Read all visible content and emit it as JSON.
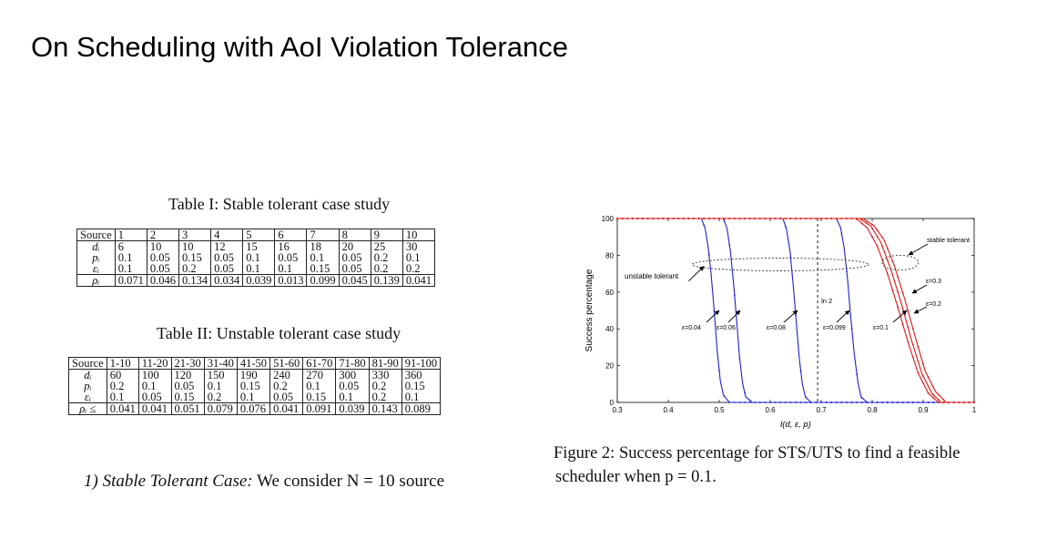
{
  "slide_title": "On Scheduling with AoI Violation Tolerance",
  "table1": {
    "caption": "Table I: Stable tolerant case study",
    "header": [
      "Source",
      "1",
      "2",
      "3",
      "4",
      "5",
      "6",
      "7",
      "8",
      "9",
      "10"
    ],
    "rows": [
      {
        "label": "d_i",
        "display": "dᵢ",
        "cells": [
          "6",
          "10",
          "10",
          "12",
          "15",
          "16",
          "18",
          "20",
          "25",
          "30"
        ]
      },
      {
        "label": "p_i",
        "display": "pᵢ",
        "cells": [
          "0.1",
          "0.05",
          "0.15",
          "0.05",
          "0.1",
          "0.05",
          "0.1",
          "0.05",
          "0.2",
          "0.1"
        ]
      },
      {
        "label": "epsilon_i",
        "display": "εᵢ",
        "cells": [
          "0.1",
          "0.05",
          "0.2",
          "0.05",
          "0.1",
          "0.1",
          "0.15",
          "0.05",
          "0.2",
          "0.2"
        ]
      },
      {
        "label": "rho_i",
        "display": "ρᵢ",
        "cells": [
          "0.071",
          "0.046",
          "0.134",
          "0.034",
          "0.039",
          "0.013",
          "0.099",
          "0.045",
          "0.139",
          "0.041"
        ]
      }
    ]
  },
  "table2": {
    "caption": "Table II: Unstable tolerant case study",
    "header": [
      "Source",
      "1-10",
      "11-20",
      "21-30",
      "31-40",
      "41-50",
      "51-60",
      "61-70",
      "71-80",
      "81-90",
      "91-100"
    ],
    "rows": [
      {
        "label": "d_i",
        "display": "dᵢ",
        "cells": [
          "60",
          "100",
          "120",
          "150",
          "190",
          "240",
          "270",
          "300",
          "330",
          "360"
        ]
      },
      {
        "label": "p_i",
        "display": "pᵢ",
        "cells": [
          "0.2",
          "0.1",
          "0.05",
          "0.1",
          "0.15",
          "0.2",
          "0.1",
          "0.05",
          "0.2",
          "0.15"
        ]
      },
      {
        "label": "epsilon_i",
        "display": "εᵢ",
        "cells": [
          "0.1",
          "0.05",
          "0.15",
          "0.2",
          "0.1",
          "0.05",
          "0.15",
          "0.1",
          "0.2",
          "0.1"
        ]
      },
      {
        "label": "rho_i_le",
        "display": "ρᵢ ≤",
        "cells": [
          "0.041",
          "0.041",
          "0.051",
          "0.079",
          "0.076",
          "0.041",
          "0.091",
          "0.039",
          "0.143",
          "0.089"
        ]
      }
    ]
  },
  "paragraph": {
    "section": "1) Stable Tolerant Case:",
    "text": "We consider N = 10 source"
  },
  "figure_caption": {
    "line1": "Figure 2:  Success percentage for STS/UTS to find a feasible",
    "line2": "scheduler when p = 0.1."
  },
  "chart_data": {
    "type": "line",
    "title": "",
    "xlabel": "l(d, ε, p)",
    "ylabel": "Success percentage",
    "xlim": [
      0.3,
      1.0
    ],
    "ylim": [
      0,
      100
    ],
    "xticks": [
      "0.3",
      "0.4",
      "0.5",
      "0.6",
      "0.7",
      "0.8",
      "0.9",
      "1"
    ],
    "yticks": [
      "0",
      "20",
      "40",
      "60",
      "80",
      "100"
    ],
    "vline": {
      "x": 0.693,
      "label": "ln 2"
    },
    "colors": {
      "unstable": "#1f1fd6",
      "stable": "#e01616"
    },
    "series": [
      {
        "name": "ε=0.04",
        "group": "unstable",
        "x": [
          0.3,
          0.465,
          0.472,
          0.478,
          0.484,
          0.49,
          0.496,
          0.502,
          0.508,
          0.52,
          1.0
        ],
        "y": [
          100,
          100,
          95,
          85,
          70,
          50,
          28,
          12,
          4,
          0,
          0
        ]
      },
      {
        "name": "ε=0.06",
        "group": "unstable",
        "x": [
          0.3,
          0.508,
          0.515,
          0.522,
          0.528,
          0.534,
          0.54,
          0.546,
          0.552,
          0.565,
          1.0
        ],
        "y": [
          100,
          100,
          95,
          82,
          65,
          45,
          24,
          10,
          3,
          0,
          0
        ]
      },
      {
        "name": "ε=0.08",
        "group": "unstable",
        "x": [
          0.3,
          0.625,
          0.632,
          0.639,
          0.645,
          0.651,
          0.657,
          0.663,
          0.669,
          0.68,
          1.0
        ],
        "y": [
          100,
          100,
          94,
          82,
          64,
          44,
          24,
          10,
          3,
          0,
          0
        ]
      },
      {
        "name": "ε=0.099",
        "group": "unstable",
        "x": [
          0.3,
          0.73,
          0.738,
          0.745,
          0.752,
          0.758,
          0.765,
          0.772,
          0.778,
          0.79,
          1.0
        ],
        "y": [
          100,
          100,
          95,
          84,
          66,
          46,
          26,
          11,
          3,
          0,
          0
        ]
      },
      {
        "name": "ε=0.1",
        "group": "stable",
        "x": [
          0.3,
          0.768,
          0.79,
          0.81,
          0.83,
          0.85,
          0.87,
          0.89,
          0.91,
          0.93,
          1.0
        ],
        "y": [
          100,
          100,
          95,
          85,
          70,
          52,
          33,
          16,
          5,
          0,
          0
        ]
      },
      {
        "name": "ε=0.2",
        "group": "stable",
        "x": [
          0.3,
          0.775,
          0.797,
          0.817,
          0.837,
          0.857,
          0.877,
          0.897,
          0.917,
          0.935,
          1.0
        ],
        "y": [
          100,
          100,
          96,
          87,
          72,
          54,
          34,
          16,
          5,
          0,
          0
        ]
      },
      {
        "name": "ε=0.3",
        "group": "stable",
        "x": [
          0.3,
          0.782,
          0.804,
          0.824,
          0.844,
          0.864,
          0.884,
          0.904,
          0.924,
          0.945,
          1.0
        ],
        "y": [
          100,
          100,
          96,
          88,
          74,
          56,
          36,
          17,
          6,
          0,
          0
        ]
      }
    ],
    "annotations": [
      "unstable tolerant",
      "stable tolerant",
      "ε=0.04",
      "ε=0.06",
      "ε=0.08",
      "ε=0.099",
      "ε=0.1",
      "ε=0.2",
      "ε=0.3",
      "ln 2"
    ]
  }
}
